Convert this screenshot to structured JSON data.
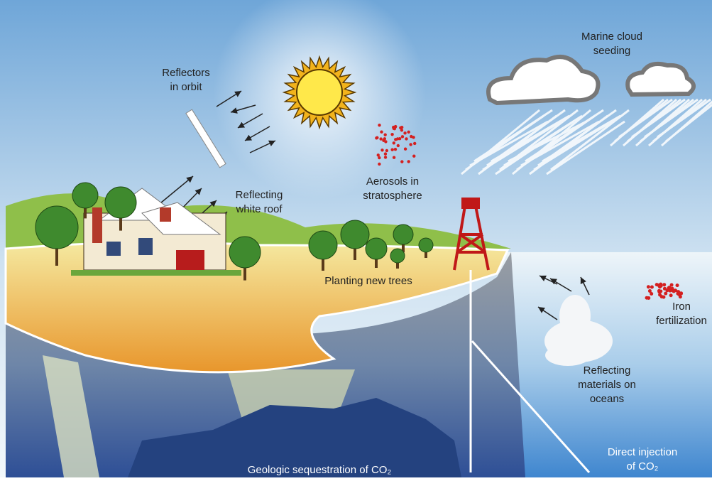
{
  "labels": [
    {
      "lines": [
        "Reflectors",
        "in orbit"
      ]
    },
    {
      "lines": [
        "Marine cloud",
        "seeding"
      ]
    },
    {
      "lines": [
        "Aerosols in",
        "stratosphere"
      ]
    },
    {
      "lines": [
        "Reflecting",
        "white roof"
      ]
    },
    {
      "lines": [
        "Planting new trees"
      ]
    },
    {
      "lines": [
        "Iron",
        "fertilization"
      ]
    },
    {
      "lines": [
        "Reflecting",
        "materials on",
        "oceans"
      ]
    },
    {
      "lines": [
        "Direct injection",
        "of CO₂"
      ]
    },
    {
      "lines": [
        "Geologic sequestration of CO₂"
      ]
    }
  ]
}
